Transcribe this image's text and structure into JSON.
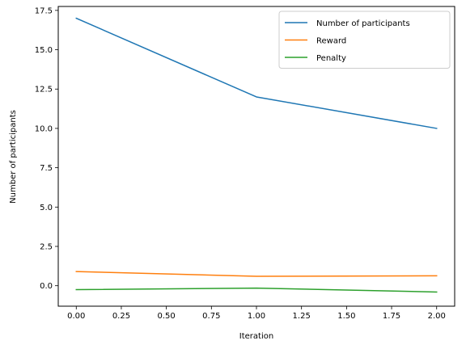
{
  "chart_data": {
    "type": "line",
    "title": "",
    "xlabel": "Iteration",
    "ylabel": "Number of participants",
    "x": [
      0,
      1,
      2
    ],
    "xlim": [
      -0.1,
      2.1
    ],
    "ylim": [
      -1.3,
      17.75
    ],
    "xticks": [
      "0.00",
      "0.25",
      "0.50",
      "0.75",
      "1.00",
      "1.25",
      "1.50",
      "1.75",
      "2.00"
    ],
    "yticks": [
      "0.0",
      "2.5",
      "5.0",
      "7.5",
      "10.0",
      "12.5",
      "15.0",
      "17.5"
    ],
    "grid": false,
    "legend_position": "top-right",
    "series": [
      {
        "name": "Number of participants",
        "color": "#1f77b4",
        "values": [
          17,
          12,
          10
        ]
      },
      {
        "name": "Reward",
        "color": "#ff7f0e",
        "values": [
          0.9,
          0.6,
          0.63
        ]
      },
      {
        "name": "Penalty",
        "color": "#2ca02c",
        "values": [
          -0.25,
          -0.15,
          -0.4
        ]
      }
    ]
  }
}
